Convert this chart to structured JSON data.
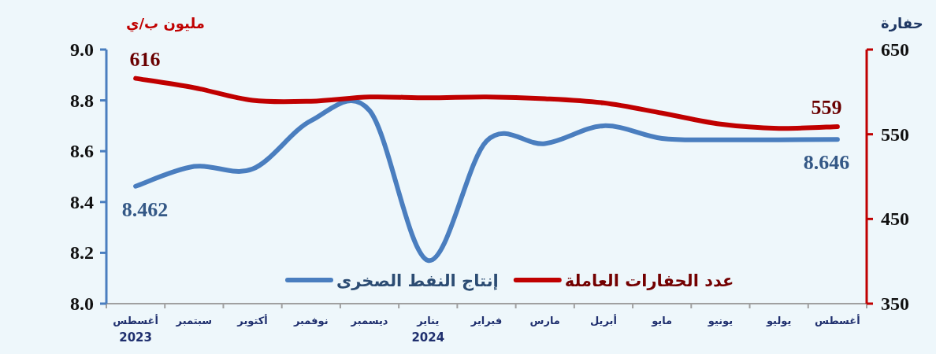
{
  "chart_data": {
    "type": "line",
    "categories": [
      "أغسطس",
      "سبتمبر",
      "أكتوبر",
      "نوفمبر",
      "ديسمبر",
      "يناير",
      "فبراير",
      "مارس",
      "أبريل",
      "مايو",
      "يونيو",
      "يوليو",
      "أغسطس"
    ],
    "series": [
      {
        "name": "إنتاج النفط الصخرى",
        "color": "#4a7ebf",
        "values": [
          8.462,
          8.54,
          8.53,
          8.72,
          8.76,
          8.17,
          8.64,
          8.63,
          8.7,
          8.65,
          8.645,
          8.645,
          8.646
        ],
        "value_labels": [
          "8.462",
          null,
          null,
          null,
          null,
          null,
          null,
          null,
          null,
          null,
          null,
          null,
          "8.646"
        ]
      },
      {
        "name": "عدد الحفارات العاملة",
        "color": "#c00000",
        "axis": "y2",
        "values": [
          616,
          605,
          590,
          589,
          594,
          593,
          594,
          592,
          587,
          575,
          562,
          557,
          559
        ],
        "value_labels": [
          "616",
          null,
          null,
          null,
          null,
          null,
          null,
          null,
          null,
          null,
          null,
          null,
          "559"
        ]
      }
    ],
    "ylabel": "مليون ب/ي",
    "y2label": "حفارة",
    "ylim": [
      8.0,
      9.0
    ],
    "yticks": [
      {
        "value": 8.0,
        "label": "8.0"
      },
      8.2,
      8.4,
      8.6,
      8.8,
      {
        "value": 9.0,
        "label": "9.0"
      }
    ],
    "y2lim": [
      350,
      650
    ],
    "y2ticks": [
      350,
      450,
      550,
      650
    ],
    "annotations": [
      "2023",
      "2024"
    ],
    "legend": "bottom",
    "marker": "none",
    "line_style": "solid",
    "grid": false
  }
}
